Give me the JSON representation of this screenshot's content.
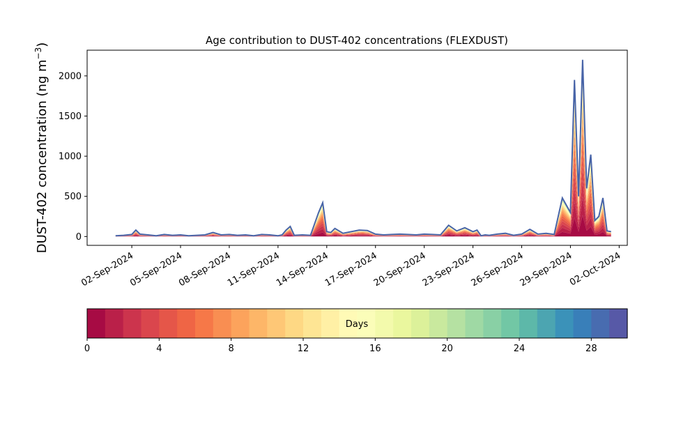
{
  "chart_data": {
    "type": "area",
    "title": "Age contribution to DUST-402 concentrations (FLEXDUST)",
    "ylabel_main": "DUST-402 concentration (ng m",
    "ylabel_sup": "−3",
    "ylabel_tail": ")",
    "xlabel": "",
    "ylim": [
      -110,
      2320
    ],
    "yticks": [
      0,
      500,
      1000,
      1500,
      2000
    ],
    "xlim": [
      "2024-08-30T06:00",
      "2024-10-02T12:00"
    ],
    "xticks": [
      "02-Sep-2024",
      "05-Sep-2024",
      "08-Sep-2024",
      "11-Sep-2024",
      "14-Sep-2024",
      "17-Sep-2024",
      "20-Sep-2024",
      "23-Sep-2024",
      "26-Sep-2024",
      "29-Sep-2024",
      "02-Oct-2024"
    ],
    "xtick_dates": [
      "2024-09-02",
      "2024-09-05",
      "2024-09-08",
      "2024-09-11",
      "2024-09-14",
      "2024-09-17",
      "2024-09-20",
      "2024-09-23",
      "2024-09-26",
      "2024-09-29",
      "2024-10-02"
    ],
    "total_series": {
      "x": [
        "2024-09-01T00:00",
        "2024-09-01T12:00",
        "2024-09-02T00:00",
        "2024-09-02T06:00",
        "2024-09-02T12:00",
        "2024-09-03T00:00",
        "2024-09-03T12:00",
        "2024-09-04T00:00",
        "2024-09-04T12:00",
        "2024-09-05T00:00",
        "2024-09-05T12:00",
        "2024-09-06T00:00",
        "2024-09-06T12:00",
        "2024-09-07T00:00",
        "2024-09-07T12:00",
        "2024-09-08T00:00",
        "2024-09-08T12:00",
        "2024-09-09T00:00",
        "2024-09-09T12:00",
        "2024-09-10T00:00",
        "2024-09-10T12:00",
        "2024-09-11T00:00",
        "2024-09-11T06:00",
        "2024-09-11T12:00",
        "2024-09-11T18:00",
        "2024-09-12T00:00",
        "2024-09-12T12:00",
        "2024-09-13T00:00",
        "2024-09-13T12:00",
        "2024-09-13T18:00",
        "2024-09-14T00:00",
        "2024-09-14T06:00",
        "2024-09-14T12:00",
        "2024-09-15T00:00",
        "2024-09-15T12:00",
        "2024-09-16T00:00",
        "2024-09-16T12:00",
        "2024-09-17T00:00",
        "2024-09-17T12:00",
        "2024-09-18T00:00",
        "2024-09-18T12:00",
        "2024-09-19T00:00",
        "2024-09-19T12:00",
        "2024-09-20T00:00",
        "2024-09-20T12:00",
        "2024-09-21T00:00",
        "2024-09-21T12:00",
        "2024-09-22T00:00",
        "2024-09-22T12:00",
        "2024-09-23T00:00",
        "2024-09-23T06:00",
        "2024-09-23T12:00",
        "2024-09-23T18:00",
        "2024-09-24T00:00",
        "2024-09-24T12:00",
        "2024-09-25T00:00",
        "2024-09-25T12:00",
        "2024-09-26T00:00",
        "2024-09-26T12:00",
        "2024-09-27T00:00",
        "2024-09-27T12:00",
        "2024-09-28T00:00",
        "2024-09-28T12:00",
        "2024-09-29T00:00",
        "2024-09-29T06:00",
        "2024-09-29T12:00",
        "2024-09-29T18:00",
        "2024-09-30T00:00",
        "2024-09-30T06:00",
        "2024-09-30T12:00",
        "2024-09-30T18:00",
        "2024-10-01T00:00",
        "2024-10-01T06:00",
        "2024-10-01T12:00"
      ],
      "y": [
        10,
        15,
        25,
        80,
        30,
        20,
        10,
        25,
        15,
        20,
        10,
        15,
        20,
        50,
        20,
        25,
        15,
        20,
        10,
        25,
        20,
        10,
        20,
        80,
        125,
        15,
        20,
        15,
        300,
        420,
        60,
        50,
        100,
        40,
        60,
        80,
        75,
        30,
        20,
        25,
        30,
        25,
        20,
        30,
        25,
        20,
        140,
        70,
        110,
        60,
        80,
        10,
        20,
        15,
        30,
        40,
        15,
        30,
        90,
        30,
        40,
        25,
        480,
        300,
        1950,
        500,
        2200,
        600,
        1020,
        200,
        250,
        480,
        70,
        60
      ]
    },
    "colorbar": {
      "label": "Days",
      "ticks": [
        0,
        4,
        8,
        12,
        16,
        20,
        24,
        28
      ],
      "range": [
        0,
        30
      ],
      "bands": 30,
      "colors": [
        "#9e0142",
        "#d53e4f",
        "#f46d43",
        "#fdae61",
        "#fee08b",
        "#ffffbf",
        "#e6f598",
        "#abdda4",
        "#66c2a5",
        "#3288bd",
        "#5e4fa2"
      ]
    },
    "line_color": "#4864a8",
    "grid": false,
    "legend": "colorbar-below"
  }
}
